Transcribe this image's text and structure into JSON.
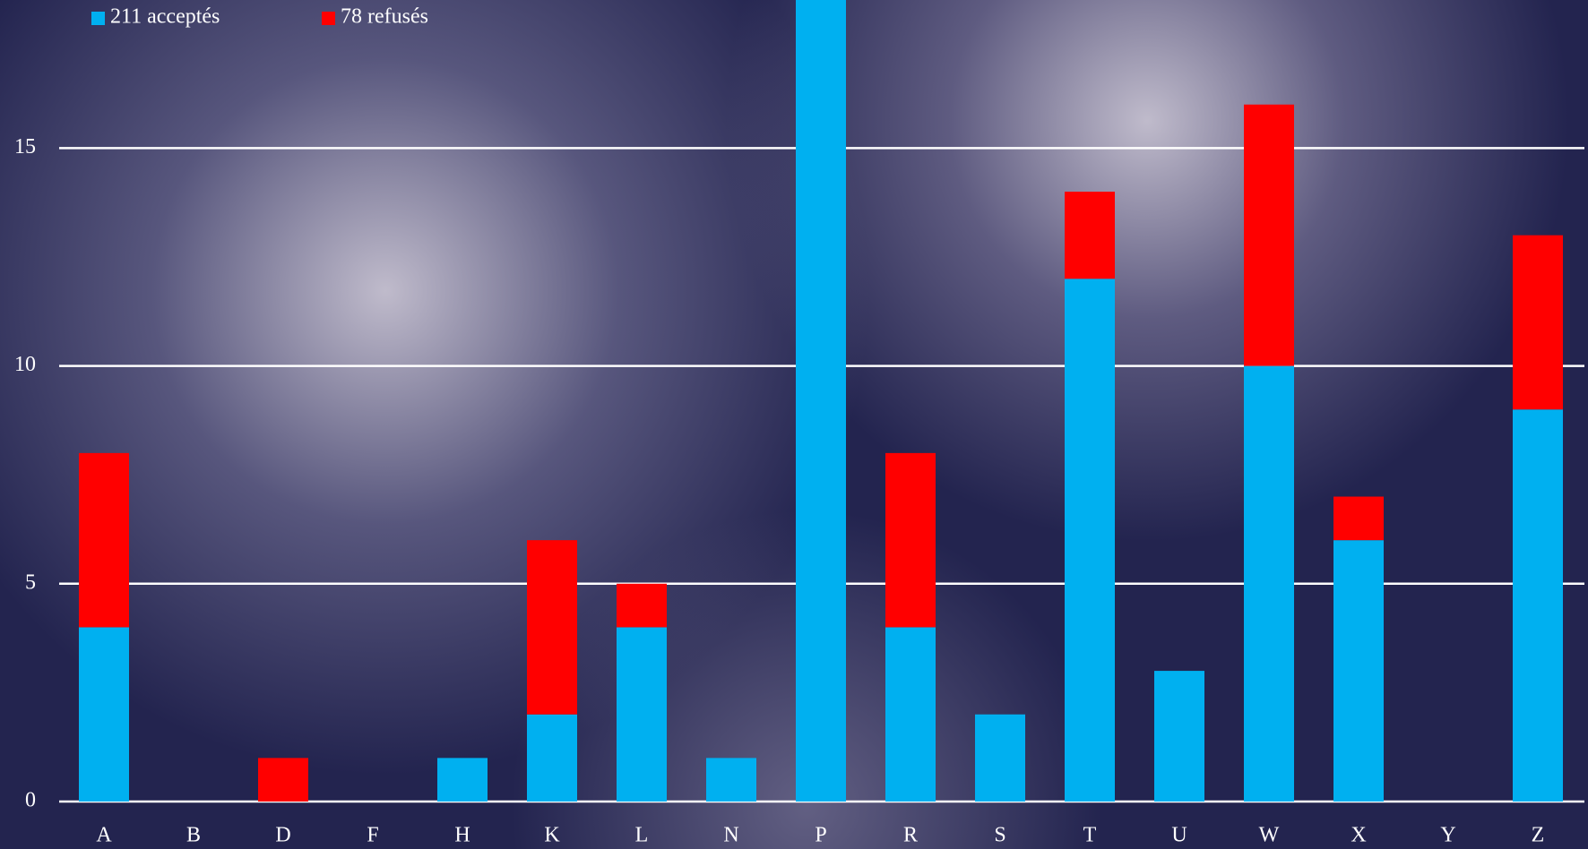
{
  "chart_data": {
    "type": "stacked-bar",
    "categories": [
      "A",
      "B",
      "D",
      "F",
      "H",
      "K",
      "L",
      "N",
      "P",
      "R",
      "S",
      "T",
      "U",
      "W",
      "X",
      "Y",
      "Z"
    ],
    "series": [
      {
        "name": "211 acceptés",
        "color": "#00b0f0",
        "values": [
          4,
          0,
          0,
          0,
          1,
          2,
          4,
          1,
          19,
          4,
          2,
          12,
          3,
          10,
          6,
          0,
          9
        ]
      },
      {
        "name": "78 refusés",
        "color": "#ff0000",
        "values": [
          4,
          0,
          1,
          0,
          0,
          4,
          1,
          0,
          0,
          4,
          0,
          2,
          0,
          6,
          1,
          0,
          4
        ]
      }
    ],
    "ylim": [
      0,
      18.4
    ],
    "yticks": [
      0,
      5,
      10,
      15
    ],
    "grid": true
  }
}
